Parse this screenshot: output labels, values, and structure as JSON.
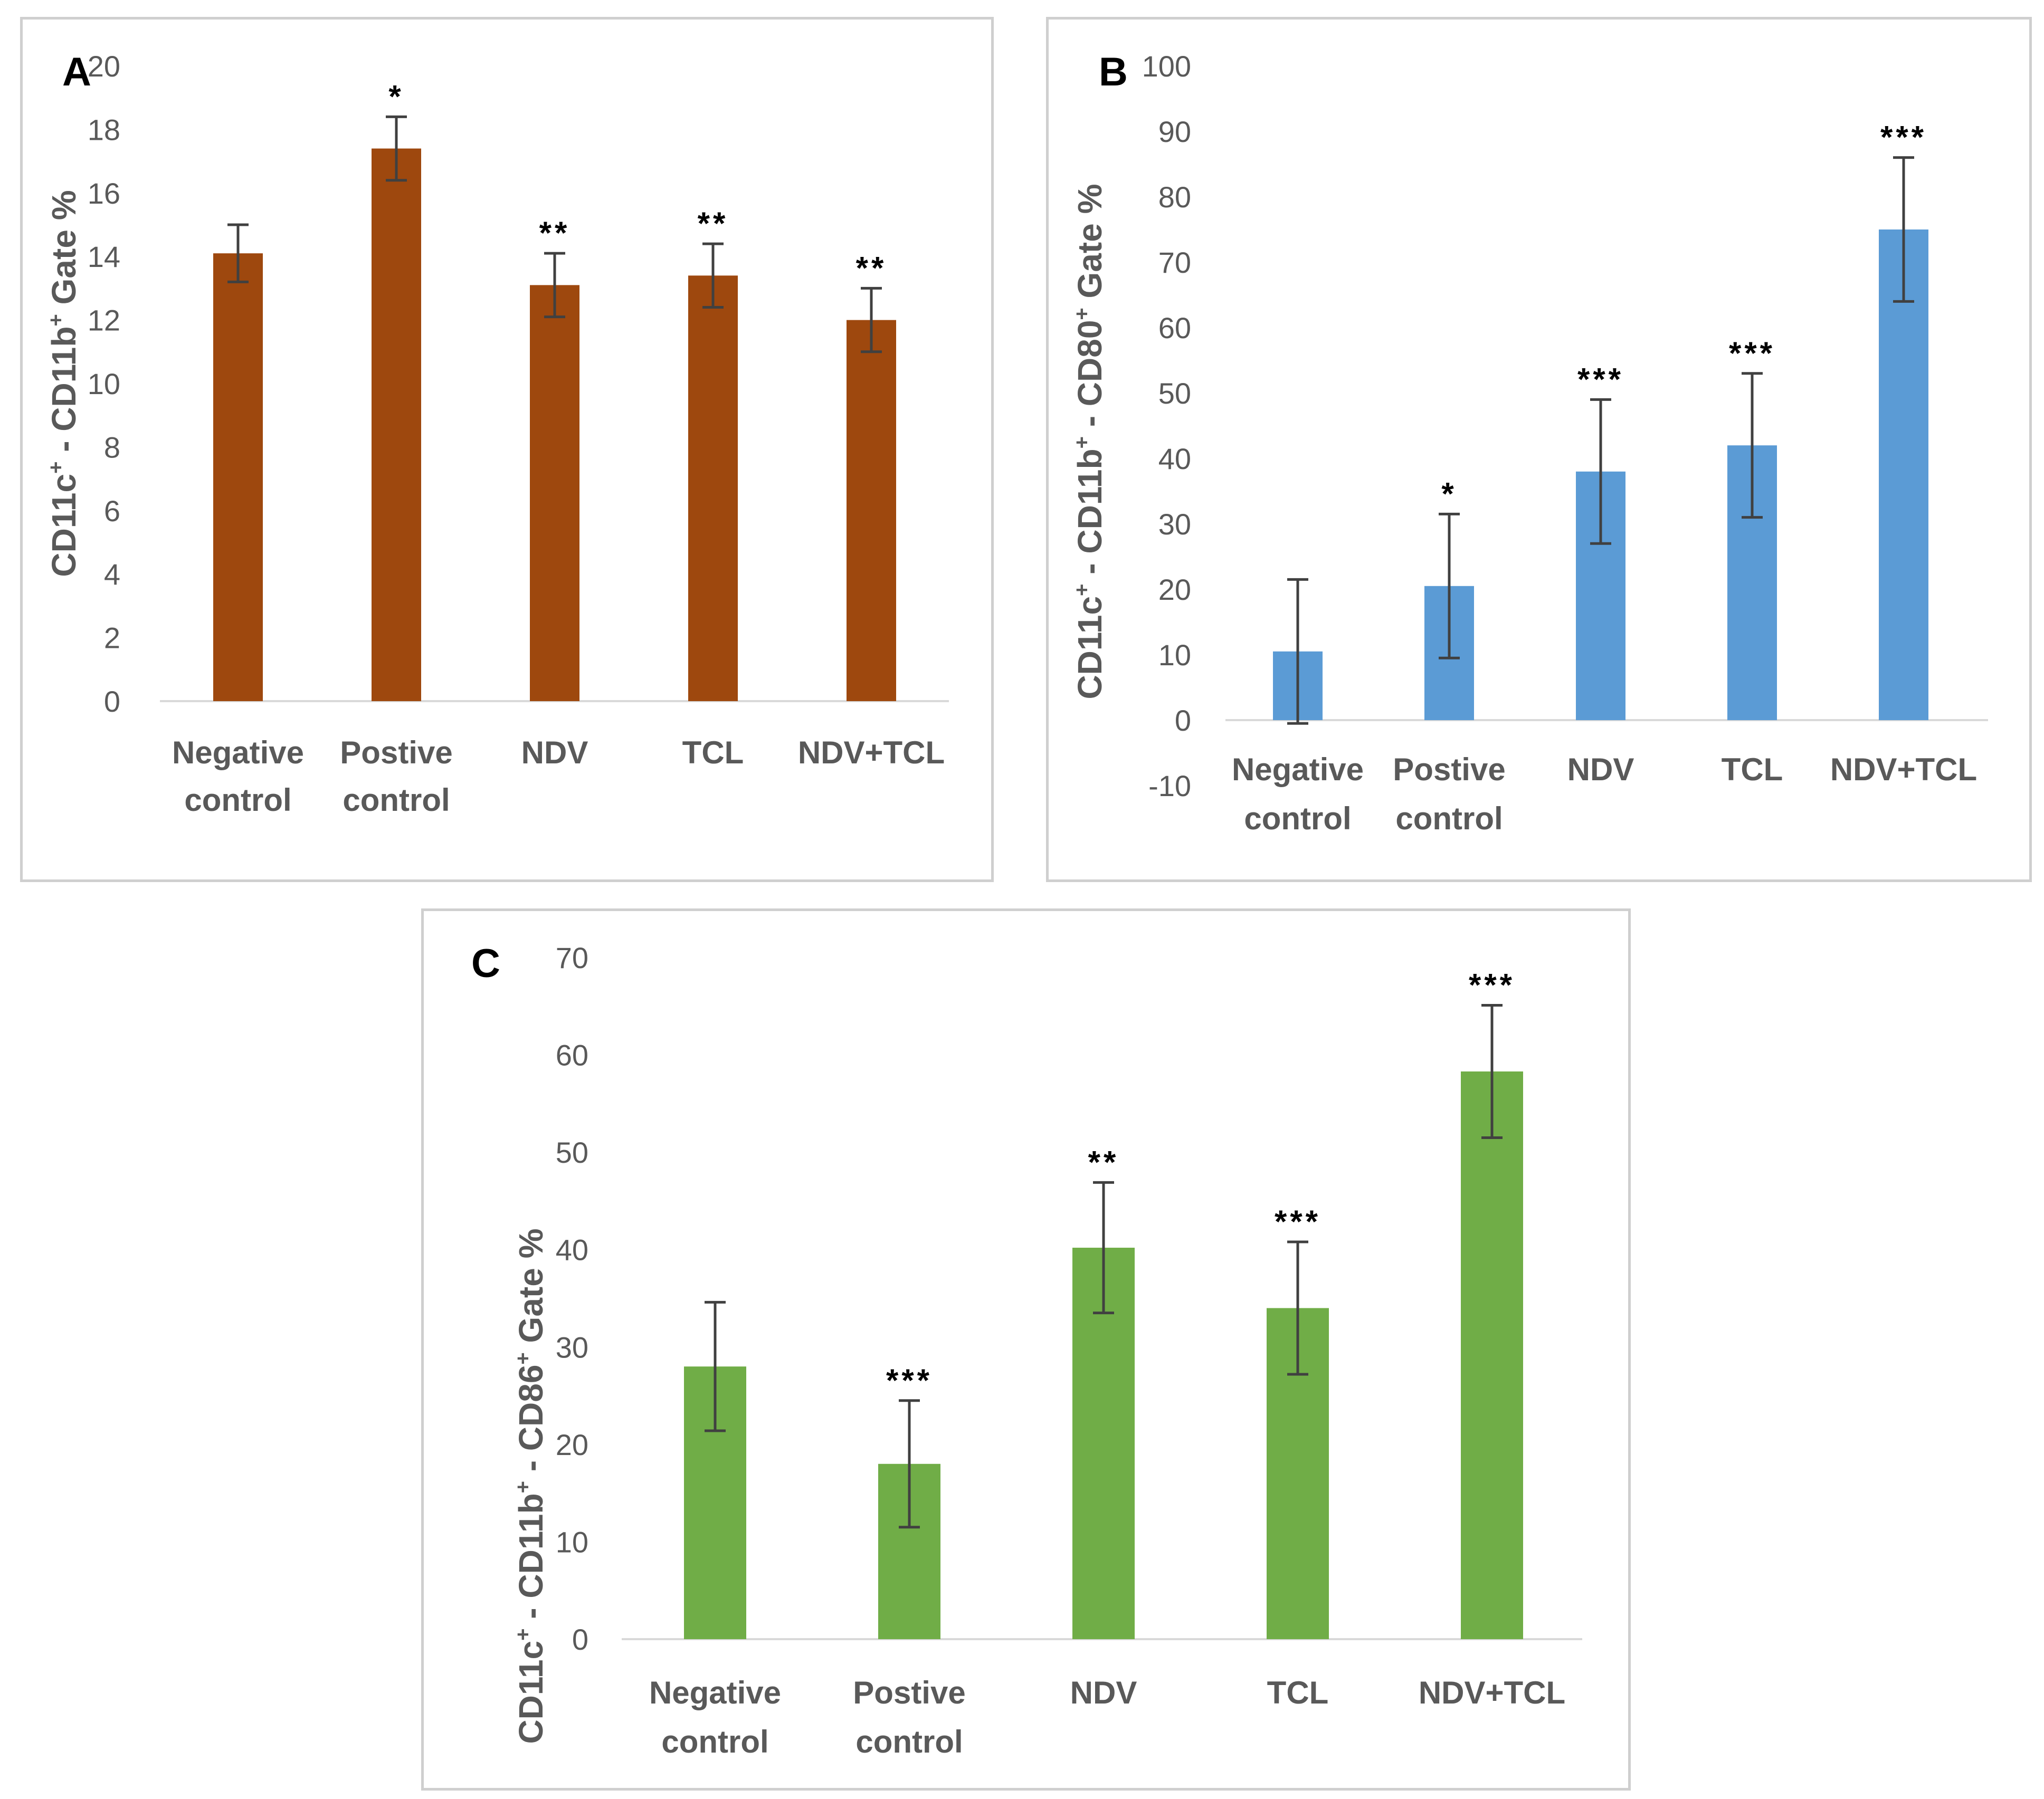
{
  "chart_data": [
    {
      "id": "a",
      "type": "bar",
      "panel_label": "A",
      "ylabel": [
        "CD11c",
        "+",
        " - CD11b",
        "+",
        " Gate %"
      ],
      "color": "#9E480E",
      "categories": [
        [
          "Negative",
          "control"
        ],
        [
          "Postive",
          "control"
        ],
        [
          "NDV"
        ],
        [
          "TCL"
        ],
        [
          "NDV+TCL"
        ]
      ],
      "values": [
        14.1,
        17.4,
        13.1,
        13.4,
        12.0
      ],
      "errors": [
        0.9,
        1.0,
        1.0,
        1.0,
        1.0
      ],
      "significance": [
        "",
        "*",
        "**",
        "**",
        "**"
      ],
      "yticks": [
        0,
        2,
        4,
        6,
        8,
        10,
        12,
        14,
        16,
        18,
        20
      ],
      "ylim": [
        0,
        20
      ]
    },
    {
      "id": "b",
      "type": "bar",
      "panel_label": "B",
      "ylabel": [
        "CD11c",
        "+",
        " - CD11b",
        "+",
        " - CD80",
        "+",
        " Gate %"
      ],
      "color": "#5B9BD5",
      "categories": [
        [
          "Negative",
          "control"
        ],
        [
          "Postive",
          "control"
        ],
        [
          "NDV"
        ],
        [
          "TCL"
        ],
        [
          "NDV+TCL"
        ]
      ],
      "values": [
        10.5,
        20.5,
        38.0,
        42.0,
        75.0
      ],
      "errors": [
        11.0,
        11.0,
        11.0,
        11.0,
        11.0
      ],
      "significance": [
        "",
        "*",
        "***",
        "***",
        "***"
      ],
      "yticks": [
        -10,
        0,
        10,
        20,
        30,
        40,
        50,
        60,
        70,
        80,
        90,
        100
      ],
      "ylim": [
        -10,
        100
      ]
    },
    {
      "id": "c",
      "type": "bar",
      "panel_label": "C",
      "ylabel": [
        "CD11c",
        "+",
        " - CD11b",
        "+",
        " - CD86",
        "+",
        " Gate %"
      ],
      "color": "#70AD47",
      "categories": [
        [
          "Negative",
          "control"
        ],
        [
          "Postive",
          "control"
        ],
        [
          "NDV"
        ],
        [
          "TCL"
        ],
        [
          "NDV+TCL"
        ]
      ],
      "values": [
        28.0,
        18.0,
        40.2,
        34.0,
        58.3
      ],
      "errors": [
        6.6,
        6.5,
        6.7,
        6.8,
        6.8
      ],
      "significance": [
        "",
        "***",
        "**",
        "***",
        "***"
      ],
      "yticks": [
        0,
        10,
        20,
        30,
        40,
        50,
        60,
        70
      ],
      "ylim": [
        0,
        70
      ]
    }
  ]
}
